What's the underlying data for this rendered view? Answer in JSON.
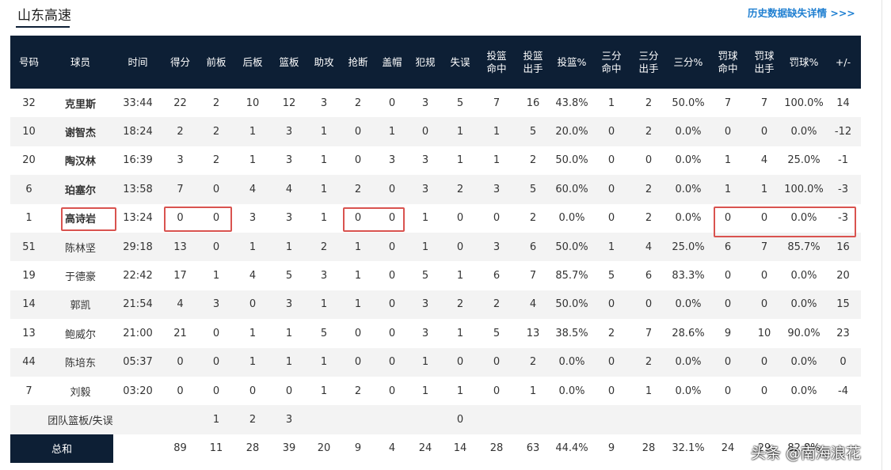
{
  "header": {
    "title": "山东高速",
    "link": "历史数据缺失详情 >>>"
  },
  "table": {
    "columns": [
      [
        "号码"
      ],
      [
        "球员"
      ],
      [
        "时间"
      ],
      [
        "得分"
      ],
      [
        "前板"
      ],
      [
        "后板"
      ],
      [
        "篮板"
      ],
      [
        "助攻"
      ],
      [
        "抢断"
      ],
      [
        "盖帽"
      ],
      [
        "犯规"
      ],
      [
        "失误"
      ],
      [
        "投篮",
        "命中"
      ],
      [
        "投篮",
        "出手"
      ],
      [
        "投篮%"
      ],
      [
        "三分",
        "命中"
      ],
      [
        "三分",
        "出手"
      ],
      [
        "三分%"
      ],
      [
        "罚球",
        "命中"
      ],
      [
        "罚球",
        "出手"
      ],
      [
        "罚球%"
      ],
      [
        "+/-"
      ]
    ],
    "rows": [
      [
        32,
        "克里斯",
        "33:44",
        22,
        2,
        10,
        12,
        3,
        2,
        0,
        3,
        5,
        7,
        16,
        "43.8%",
        1,
        2,
        "50.0%",
        7,
        7,
        "100.0%",
        14
      ],
      [
        10,
        "谢智杰",
        "18:24",
        2,
        2,
        1,
        3,
        1,
        0,
        1,
        0,
        1,
        1,
        5,
        "20.0%",
        0,
        2,
        "0.0%",
        0,
        0,
        "0.0%",
        -12
      ],
      [
        20,
        "陶汉林",
        "16:39",
        3,
        2,
        1,
        3,
        1,
        0,
        3,
        3,
        1,
        1,
        2,
        "50.0%",
        0,
        0,
        "0.0%",
        1,
        4,
        "25.0%",
        -1
      ],
      [
        6,
        "珀塞尔",
        "13:58",
        7,
        0,
        4,
        4,
        1,
        2,
        0,
        3,
        2,
        3,
        5,
        "60.0%",
        0,
        2,
        "0.0%",
        1,
        1,
        "100.0%",
        -3
      ],
      [
        1,
        "高诗岩",
        "13:24",
        0,
        0,
        3,
        3,
        1,
        0,
        0,
        1,
        0,
        0,
        2,
        "0.0%",
        0,
        2,
        "0.0%",
        0,
        0,
        "0.0%",
        -3
      ],
      [
        51,
        "陈林坚",
        "29:18",
        13,
        0,
        1,
        1,
        2,
        1,
        0,
        1,
        0,
        3,
        6,
        "50.0%",
        1,
        4,
        "25.0%",
        6,
        7,
        "85.7%",
        16
      ],
      [
        19,
        "于德豪",
        "22:42",
        17,
        1,
        4,
        5,
        3,
        1,
        0,
        5,
        1,
        6,
        7,
        "85.7%",
        5,
        6,
        "83.3%",
        0,
        0,
        "0.0%",
        20
      ],
      [
        14,
        "郭凯",
        "21:54",
        4,
        3,
        0,
        3,
        1,
        1,
        0,
        3,
        2,
        2,
        4,
        "50.0%",
        0,
        0,
        "0.0%",
        0,
        0,
        "0.0%",
        15
      ],
      [
        13,
        "鲍威尔",
        "21:00",
        21,
        0,
        1,
        1,
        5,
        0,
        0,
        3,
        1,
        5,
        13,
        "38.5%",
        2,
        7,
        "28.6%",
        9,
        10,
        "90.0%",
        23
      ],
      [
        44,
        "陈培东",
        "05:37",
        0,
        0,
        1,
        1,
        1,
        0,
        0,
        1,
        0,
        0,
        2,
        "0.0%",
        0,
        2,
        "0.0%",
        0,
        0,
        "0.0%",
        0
      ],
      [
        7,
        "刘毅",
        "03:20",
        0,
        0,
        0,
        0,
        1,
        2,
        0,
        1,
        1,
        0,
        1,
        "0.0%",
        0,
        1,
        "0.0%",
        0,
        0,
        "0.0%",
        -4
      ]
    ],
    "team_row": {
      "label": "团队篮板/失误",
      "values": [
        null,
        null,
        1,
        2,
        3,
        null,
        null,
        null,
        null,
        0,
        null,
        null,
        null,
        null,
        null,
        null,
        null,
        null,
        null,
        null
      ]
    },
    "total_row": {
      "label": "总和",
      "values": [
        null,
        89,
        11,
        28,
        39,
        20,
        9,
        4,
        24,
        14,
        28,
        63,
        "44.4%",
        9,
        28,
        "32.1%",
        24,
        29,
        "82.8%",
        null
      ]
    }
  },
  "watermark": "头条 @南海浪花"
}
